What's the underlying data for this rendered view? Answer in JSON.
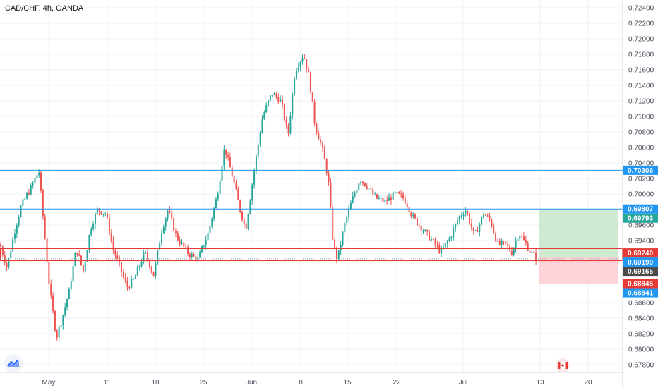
{
  "title": "CAD/CHF, 4h, OANDA",
  "colors": {
    "up": "#26a69a",
    "down": "#ef5350",
    "hline": "#2196f3",
    "box_red": "#e53935",
    "profit_zone": "#c8e6c9",
    "loss_zone": "#ffcdd2",
    "grid": "#eef0f4"
  },
  "chart_data": {
    "type": "candlestick",
    "symbol": "CAD/CHF",
    "interval": "4h",
    "source": "OANDA",
    "ylim": [
      0.677,
      0.725
    ],
    "y_ticks": [
      "0.72400",
      "0.72200",
      "0.72000",
      "0.71800",
      "0.71600",
      "0.71400",
      "0.71200",
      "0.71000",
      "0.70800",
      "0.70600",
      "0.70400",
      "0.70200",
      "0.70000",
      "0.69600",
      "0.69400",
      "0.68600",
      "0.68400",
      "0.68200",
      "0.68000",
      "0.67800"
    ],
    "x_ticks": [
      "May",
      "11",
      "18",
      "25",
      "Jun",
      "8",
      "15",
      "22",
      "Jul",
      "13",
      "20"
    ],
    "trend": [
      [
        0,
        0.6935
      ],
      [
        10,
        0.6905
      ],
      [
        20,
        0.695
      ],
      [
        30,
        0.6985
      ],
      [
        45,
        0.701
      ],
      [
        55,
        0.703
      ],
      [
        62,
        0.696
      ],
      [
        70,
        0.688
      ],
      [
        80,
        0.6815
      ],
      [
        88,
        0.684
      ],
      [
        98,
        0.6875
      ],
      [
        108,
        0.693
      ],
      [
        118,
        0.69
      ],
      [
        128,
        0.6955
      ],
      [
        138,
        0.698
      ],
      [
        150,
        0.6975
      ],
      [
        160,
        0.693
      ],
      [
        170,
        0.6905
      ],
      [
        180,
        0.688
      ],
      [
        190,
        0.689
      ],
      [
        205,
        0.6925
      ],
      [
        218,
        0.6895
      ],
      [
        228,
        0.695
      ],
      [
        238,
        0.698
      ],
      [
        250,
        0.6945
      ],
      [
        265,
        0.6925
      ],
      [
        280,
        0.6915
      ],
      [
        295,
        0.695
      ],
      [
        308,
        0.7
      ],
      [
        318,
        0.706
      ],
      [
        330,
        0.702
      ],
      [
        340,
        0.698
      ],
      [
        348,
        0.6955
      ],
      [
        360,
        0.703
      ],
      [
        372,
        0.71
      ],
      [
        385,
        0.713
      ],
      [
        398,
        0.712
      ],
      [
        408,
        0.7075
      ],
      [
        418,
        0.716
      ],
      [
        430,
        0.718
      ],
      [
        438,
        0.715
      ],
      [
        446,
        0.709
      ],
      [
        456,
        0.706
      ],
      [
        465,
        0.702
      ],
      [
        472,
        0.6935
      ],
      [
        478,
        0.6915
      ],
      [
        488,
        0.696
      ],
      [
        498,
        0.699
      ],
      [
        510,
        0.702
      ],
      [
        520,
        0.701
      ],
      [
        532,
        0.6995
      ],
      [
        545,
        0.699
      ],
      [
        560,
        0.7
      ],
      [
        572,
        0.6995
      ],
      [
        585,
        0.697
      ],
      [
        598,
        0.6955
      ],
      [
        612,
        0.694
      ],
      [
        625,
        0.6925
      ],
      [
        638,
        0.6945
      ],
      [
        650,
        0.697
      ],
      [
        660,
        0.698
      ],
      [
        672,
        0.6945
      ],
      [
        685,
        0.6975
      ],
      [
        695,
        0.6965
      ],
      [
        705,
        0.6935
      ],
      [
        715,
        0.6935
      ],
      [
        725,
        0.6925
      ],
      [
        735,
        0.695
      ],
      [
        745,
        0.6935
      ],
      [
        752,
        0.6925
      ],
      [
        760,
        0.6917
      ]
    ],
    "horizontal_lines": [
      {
        "value": 0.70306,
        "label": "0.70306"
      },
      {
        "value": 0.69807,
        "label": "0.69807"
      },
      {
        "value": 0.68841,
        "label": "0.68841"
      }
    ],
    "range_box": {
      "top": 0.693,
      "bottom": 0.69145
    },
    "position": {
      "entry": 0.6919,
      "target": 0.69807,
      "stop": 0.68841
    },
    "price_tags": [
      {
        "value": 0.70306,
        "label": "0.70306",
        "color": "#2196f3"
      },
      {
        "value": 0.69807,
        "label": "0.69807",
        "color": "#2196f3"
      },
      {
        "value": 0.69793,
        "label": "0.69793",
        "color": "#26a69a"
      },
      {
        "value": 0.6924,
        "label": "0.69240",
        "color": "#e53935"
      },
      {
        "value": 0.6919,
        "label": "0.69190",
        "color": "#2196f3"
      },
      {
        "value": 0.69165,
        "label": "0.69165",
        "color": "#4a4a4a"
      },
      {
        "value": 0.68845,
        "label": "0.68845",
        "color": "#e53935"
      },
      {
        "value": 0.68841,
        "label": "0.68841",
        "color": "#2196f3"
      }
    ]
  }
}
